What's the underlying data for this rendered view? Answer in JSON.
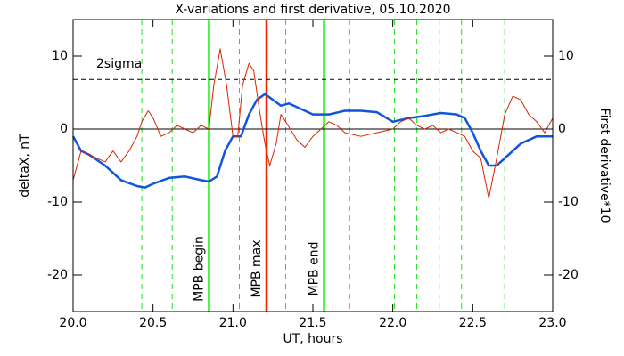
{
  "chart_data": {
    "type": "line",
    "title": "X-variations and first derivative, 05.10.2020",
    "xlabel": "UT, hours",
    "ylabel": "deltaX, nT",
    "y2label": "First derivative*10",
    "xlim": [
      20.0,
      23.0
    ],
    "xticks": [
      {
        "value": 20.0,
        "label": "20.0"
      },
      {
        "value": 20.5,
        "label": "20.5"
      },
      {
        "value": 21.0,
        "label": "21.0"
      },
      {
        "value": 21.5,
        "label": "21.5"
      },
      {
        "value": 22.0,
        "label": "22.0"
      },
      {
        "value": 22.5,
        "label": "22.5"
      },
      {
        "value": 23.0,
        "label": "23.0"
      }
    ],
    "ylim": [
      -25,
      15
    ],
    "yticks": [
      -20,
      -10,
      0,
      10
    ],
    "y2lim": [
      -25,
      15
    ],
    "y2ticks": [
      -20,
      -10,
      0,
      10
    ],
    "ylabel_color": "#1155dd",
    "y2label_color": "#ee2200",
    "threshold": {
      "value": 6.8,
      "label": "2sigma"
    },
    "vlines": [
      {
        "x": 20.43,
        "color": "#22dd22",
        "dashed": true
      },
      {
        "x": 20.62,
        "color": "#22dd22",
        "dashed": true
      },
      {
        "x": 20.85,
        "color": "#22ee22",
        "dashed": false,
        "label": "MPB begin"
      },
      {
        "x": 21.04,
        "color": "#22dd22",
        "dashed": true
      },
      {
        "x": 21.21,
        "color": "#ee2200",
        "dashed": false,
        "label": "MPB max"
      },
      {
        "x": 21.33,
        "color": "#22dd22",
        "dashed": true
      },
      {
        "x": 21.57,
        "color": "#22ee22",
        "dashed": false,
        "label": "MPB end"
      },
      {
        "x": 21.73,
        "color": "#22dd22",
        "dashed": true
      },
      {
        "x": 22.01,
        "color": "#22dd22",
        "dashed": true
      },
      {
        "x": 22.15,
        "color": "#22dd22",
        "dashed": true
      },
      {
        "x": 22.29,
        "color": "#22dd22",
        "dashed": true
      },
      {
        "x": 22.43,
        "color": "#22dd22",
        "dashed": true
      },
      {
        "x": 22.7,
        "color": "#22dd22",
        "dashed": true
      }
    ],
    "series": [
      {
        "name": "deltaX",
        "color": "#1155dd",
        "width": 2.5,
        "axis": "y",
        "x": [
          20.0,
          20.05,
          20.1,
          20.2,
          20.3,
          20.4,
          20.45,
          20.5,
          20.6,
          20.7,
          20.8,
          20.85,
          20.9,
          20.95,
          21.0,
          21.05,
          21.1,
          21.15,
          21.2,
          21.25,
          21.3,
          21.35,
          21.4,
          21.5,
          21.6,
          21.7,
          21.8,
          21.9,
          22.0,
          22.1,
          22.2,
          22.3,
          22.4,
          22.45,
          22.5,
          22.55,
          22.6,
          22.65,
          22.7,
          22.8,
          22.9,
          23.0
        ],
        "values": [
          -1,
          -3,
          -3.5,
          -5,
          -7,
          -7.8,
          -8,
          -7.5,
          -6.7,
          -6.5,
          -7,
          -7.2,
          -6.5,
          -3,
          -1,
          -1,
          2,
          4,
          4.8,
          4,
          3.2,
          3.5,
          3,
          2,
          2,
          2.5,
          2.5,
          2.3,
          1,
          1.5,
          1.8,
          2.2,
          2,
          1.5,
          -0.5,
          -3,
          -5,
          -5,
          -4,
          -2,
          -1,
          -1
        ]
      },
      {
        "name": "First derivative*10",
        "color": "#dd2200",
        "width": 1,
        "axis": "y2",
        "x": [
          20.0,
          20.05,
          20.1,
          20.15,
          20.2,
          20.25,
          20.3,
          20.35,
          20.4,
          20.43,
          20.47,
          20.5,
          20.55,
          20.6,
          20.65,
          20.7,
          20.75,
          20.8,
          20.85,
          20.88,
          20.92,
          20.96,
          21.0,
          21.03,
          21.06,
          21.1,
          21.13,
          21.17,
          21.2,
          21.23,
          21.27,
          21.3,
          21.33,
          21.4,
          21.45,
          21.5,
          21.55,
          21.6,
          21.65,
          21.7,
          21.8,
          21.9,
          22.0,
          22.05,
          22.1,
          22.15,
          22.2,
          22.25,
          22.3,
          22.35,
          22.4,
          22.45,
          22.5,
          22.55,
          22.6,
          22.65,
          22.7,
          22.75,
          22.8,
          22.85,
          22.9,
          22.95,
          23.0
        ],
        "values": [
          -7,
          -3,
          -3.5,
          -4,
          -4.5,
          -3,
          -4.5,
          -3,
          -1,
          1,
          2.5,
          1.5,
          -1,
          -0.5,
          0.5,
          0,
          -0.5,
          0.5,
          0,
          6,
          11,
          6,
          -1,
          -1,
          6,
          9,
          8,
          2,
          -2,
          -5,
          -2,
          2,
          1,
          -1.5,
          -2.5,
          -1,
          0,
          1,
          0.5,
          -0.5,
          -1,
          -0.5,
          0,
          1,
          1.5,
          0.5,
          0,
          0.5,
          -0.5,
          0,
          -0.5,
          -1,
          -3,
          -4,
          -9.5,
          -4,
          2,
          4.5,
          4,
          2,
          1,
          -0.5,
          1.5
        ]
      }
    ]
  }
}
